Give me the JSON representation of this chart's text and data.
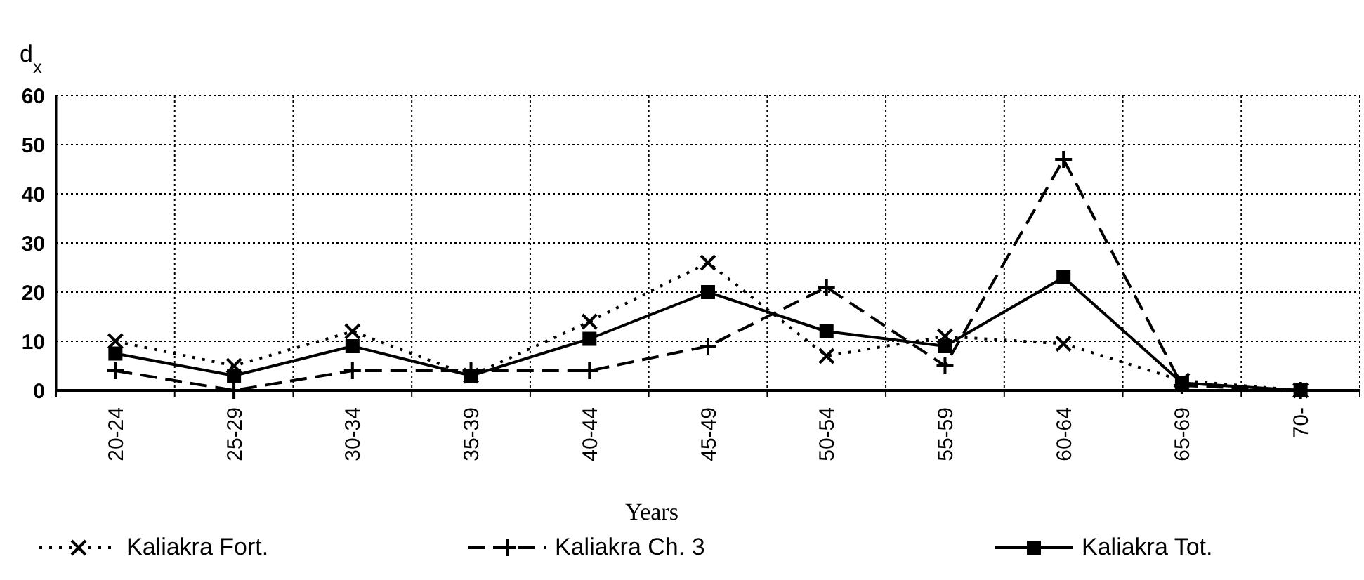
{
  "chart_data": {
    "type": "line",
    "ylabel": "d$_{x}$",
    "xlabel": "Years",
    "categories": [
      "20-24",
      "25-29",
      "30-34",
      "35-39",
      "40-44",
      "45-49",
      "50-54",
      "55-59",
      "60-64",
      "65-69",
      "70-"
    ],
    "series": [
      {
        "name": "Kaliakra Fort.",
        "color": "#000000",
        "marker": "x",
        "line_style": "dotted",
        "values": [
          10,
          5,
          12,
          3,
          14,
          26,
          7,
          11,
          9.5,
          2,
          0
        ]
      },
      {
        "name": "Kaliakra Ch. 3",
        "color": "#000000",
        "marker": "cross",
        "line_style": "dashed",
        "values": [
          4,
          0,
          4,
          4,
          4,
          9,
          21,
          5,
          47,
          1,
          0
        ]
      },
      {
        "name": "Kaliakra Tot.",
        "color": "#000000",
        "marker": "square",
        "line_style": "solid",
        "values": [
          7.5,
          3,
          9,
          3,
          10.5,
          20,
          12,
          9,
          23,
          1.5,
          0
        ]
      }
    ],
    "ylim": [
      0,
      60
    ],
    "yticks": [
      0,
      10,
      20,
      30,
      40,
      50,
      60
    ],
    "grid": true,
    "legend": "bottom"
  }
}
